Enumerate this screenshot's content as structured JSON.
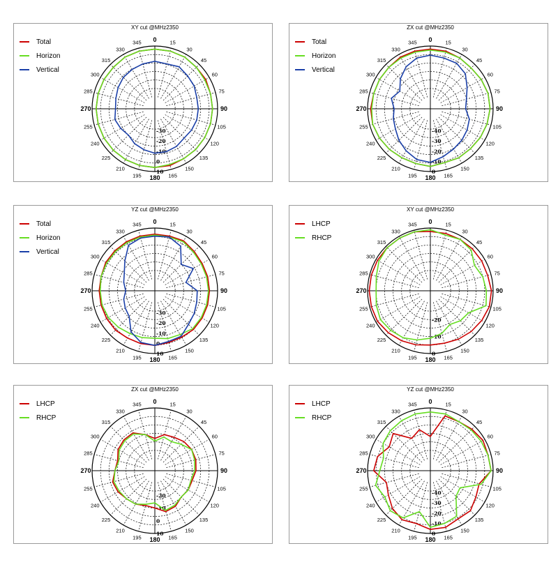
{
  "chart_data": [
    {
      "type": "polar",
      "title": "XY cut @MHz2350",
      "angle_labels": [
        "0",
        "15",
        "30",
        "45",
        "60",
        "75",
        "90",
        "105",
        "120",
        "135",
        "150",
        "165",
        "180",
        "195",
        "210",
        "225",
        "240",
        "255",
        "270",
        "285",
        "300",
        "315",
        "330",
        "345"
      ],
      "radial_labels": [
        "-30",
        "-20",
        "-10",
        "0",
        "10"
      ],
      "rmin": -40,
      "rmax": 10,
      "series": [
        {
          "name": "Total",
          "color": "#cc0000",
          "values": [
            7,
            7,
            7,
            6,
            6,
            5,
            5,
            5,
            5,
            5,
            5,
            6,
            6,
            6,
            6,
            6,
            6,
            6,
            6,
            6,
            6,
            6,
            7,
            7
          ]
        },
        {
          "name": "Horizon",
          "color": "#66dd22",
          "values": [
            7,
            7,
            7,
            6,
            5,
            5,
            5,
            5,
            5,
            5,
            5,
            5,
            6,
            6,
            6,
            6,
            6,
            6,
            6,
            6,
            6,
            6,
            7,
            7
          ]
        },
        {
          "name": "Vertical",
          "color": "#1a3fa8",
          "values": [
            -5,
            -6,
            -4,
            -6,
            -7,
            -9,
            -9,
            -9,
            -10,
            -11,
            -9,
            -8,
            -8,
            -10,
            -12,
            -15,
            -13,
            -11,
            -13,
            -12,
            -10,
            -8,
            -7,
            -6
          ]
        }
      ]
    },
    {
      "type": "polar",
      "title": "ZX cut @MHz2350",
      "angle_labels": [
        "0",
        "15",
        "30",
        "45",
        "60",
        "75",
        "90",
        "105",
        "120",
        "135",
        "150",
        "165",
        "180",
        "195",
        "210",
        "225",
        "240",
        "255",
        "270",
        "285",
        "300",
        "315",
        "330",
        "345"
      ],
      "radial_labels": [
        "-40",
        "-30",
        "-20",
        "-10",
        "0"
      ],
      "rmin": -50,
      "rmax": 0,
      "series": [
        {
          "name": "Total",
          "color": "#cc0000",
          "values": [
            -3,
            -3,
            -4,
            -5,
            -4,
            -3,
            -3,
            -4,
            -5,
            -6,
            -6,
            -7,
            -5,
            -6,
            -6,
            -5,
            -4,
            -3,
            -3,
            -4,
            -4,
            -4,
            -3,
            -3
          ]
        },
        {
          "name": "Horizon",
          "color": "#66dd22",
          "values": [
            -4,
            -4,
            -4,
            -5,
            -4,
            -3,
            -3,
            -4,
            -5,
            -6,
            -6,
            -7,
            -5,
            -6,
            -6,
            -5,
            -4,
            -3,
            -4,
            -4,
            -4,
            -4,
            -4,
            -4
          ]
        },
        {
          "name": "Vertical",
          "color": "#1a3fa8",
          "values": [
            -9,
            -10,
            -10,
            -13,
            -20,
            -25,
            -27,
            -22,
            -20,
            -18,
            -16,
            -13,
            -9,
            -10,
            -14,
            -18,
            -22,
            -24,
            -26,
            -22,
            -27,
            -20,
            -14,
            -10
          ]
        }
      ]
    },
    {
      "type": "polar",
      "title": "YZ cut @MHz2350",
      "angle_labels": [
        "0",
        "15",
        "30",
        "45",
        "60",
        "75",
        "90",
        "105",
        "120",
        "135",
        "150",
        "165",
        "180",
        "195",
        "210",
        "225",
        "240",
        "255",
        "270",
        "285",
        "300",
        "315",
        "330",
        "345"
      ],
      "radial_labels": [
        "-30",
        "-20",
        "-10",
        "0",
        "10"
      ],
      "rmin": -40,
      "rmax": 10,
      "series": [
        {
          "name": "Total",
          "color": "#cc0000",
          "values": [
            4,
            4,
            5,
            3,
            2,
            2,
            2,
            2,
            2,
            2,
            1,
            1,
            2,
            2,
            2,
            3,
            3,
            3,
            3,
            3,
            4,
            4,
            4,
            4
          ]
        },
        {
          "name": "Horizon",
          "color": "#66dd22",
          "values": [
            3,
            3,
            4,
            2,
            1,
            1,
            1,
            1,
            1,
            1,
            -2,
            -3,
            -5,
            -4,
            -3,
            -1,
            1,
            2,
            2,
            3,
            3,
            3,
            3,
            3
          ]
        },
        {
          "name": "Vertical",
          "color": "#1a3fa8",
          "values": [
            2,
            3,
            -1,
            -15,
            -8,
            -20,
            -10,
            -9,
            -7,
            -5,
            0,
            0,
            2,
            1,
            -5,
            -16,
            -18,
            -20,
            -23,
            -20,
            -17,
            -10,
            0,
            2
          ]
        }
      ]
    },
    {
      "type": "polar",
      "title": "XY cut @MHz2350",
      "angle_labels": [
        "0",
        "15",
        "30",
        "45",
        "60",
        "75",
        "90",
        "105",
        "120",
        "135",
        "150",
        "165",
        "180",
        "195",
        "210",
        "225",
        "240",
        "255",
        "270",
        "285",
        "300",
        "315",
        "330",
        "345"
      ],
      "radial_labels": [
        "-20",
        "-10",
        "0"
      ],
      "rmin": -30,
      "rmax": 0,
      "series": [
        {
          "name": "LHCP",
          "color": "#cc0000",
          "values": [
            -2,
            -2,
            -2,
            -2,
            -2,
            -2,
            -1,
            -1,
            -2,
            -3,
            -4,
            -5,
            -5,
            -4,
            -3,
            -2,
            -1,
            -1,
            -1,
            -1,
            -1,
            -1,
            -1,
            -1
          ]
        },
        {
          "name": "RHCP",
          "color": "#66dd22",
          "values": [
            -1,
            -3,
            -2,
            -3,
            -7,
            -5,
            -4,
            -3,
            -11,
            -12,
            -14,
            -11,
            -9,
            -7,
            -5,
            -4,
            -3,
            -4,
            -5,
            -4,
            -2,
            -1,
            -1,
            -1
          ]
        }
      ]
    },
    {
      "type": "polar",
      "title": "ZX cut @MHz2350",
      "angle_labels": [
        "0",
        "15",
        "30",
        "45",
        "60",
        "75",
        "90",
        "105",
        "120",
        "135",
        "150",
        "165",
        "180",
        "195",
        "210",
        "225",
        "240",
        "255",
        "270",
        "285",
        "300",
        "315",
        "330",
        "345"
      ],
      "radial_labels": [
        "-20",
        "-10",
        "0",
        "10"
      ],
      "rmin": -30,
      "rmax": 10,
      "series": [
        {
          "name": "LHCP",
          "color": "#cc0000",
          "values": [
            -14,
            -10,
            -9,
            -7,
            -6,
            -6,
            -7,
            -9,
            -9,
            -10,
            -7,
            -6,
            -10,
            -11,
            -9,
            -8,
            -6,
            -5,
            -8,
            -9,
            -6,
            -5,
            -5,
            -10
          ]
        },
        {
          "name": "RHCP",
          "color": "#66dd22",
          "values": [
            -16,
            -12,
            -13,
            -10,
            -6,
            -7,
            -8,
            -10,
            -9,
            -10,
            -8,
            -7,
            -14,
            -12,
            -9,
            -8,
            -7,
            -6,
            -8,
            -10,
            -7,
            -6,
            -6,
            -10
          ]
        }
      ]
    },
    {
      "type": "polar",
      "title": "YZ cut @MHz2350",
      "angle_labels": [
        "0",
        "15",
        "30",
        "45",
        "60",
        "75",
        "90",
        "105",
        "120",
        "135",
        "150",
        "165",
        "180",
        "195",
        "210",
        "225",
        "240",
        "255",
        "270",
        "285",
        "300",
        "315",
        "330",
        "345"
      ],
      "radial_labels": [
        "-40",
        "-30",
        "-20",
        "-10",
        "0"
      ],
      "rmin": -50,
      "rmax": 0,
      "series": [
        {
          "name": "LHCP",
          "color": "#cc0000",
          "values": [
            -28,
            -6,
            -6,
            -4,
            -2,
            -3,
            -2,
            -12,
            -10,
            -6,
            -7,
            -4,
            -4,
            -8,
            -6,
            -9,
            -14,
            -17,
            -6,
            -8,
            -15,
            -10,
            -25,
            -20
          ]
        },
        {
          "name": "RHCP",
          "color": "#66dd22",
          "values": [
            -4,
            -4,
            -6,
            -5,
            -4,
            -3,
            -2,
            -10,
            -28,
            -26,
            -10,
            -8,
            -6,
            -20,
            -8,
            -6,
            -10,
            -6,
            -12,
            -14,
            -8,
            -6,
            -5,
            -4
          ]
        }
      ]
    }
  ]
}
